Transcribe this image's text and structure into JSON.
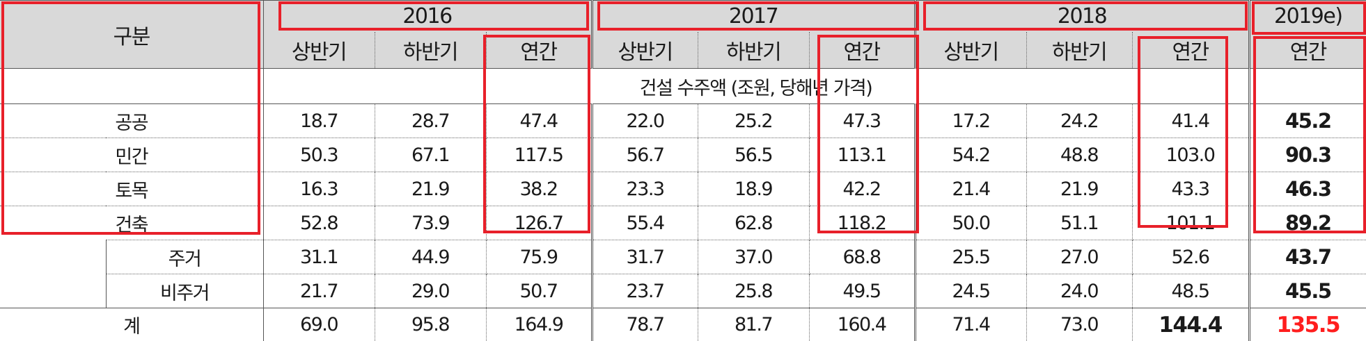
{
  "header": {
    "gubun": "구분",
    "years": [
      "2016",
      "2017",
      "2018",
      "2019e)"
    ],
    "sub": [
      "상반기",
      "하반기",
      "연간"
    ],
    "sub2019": "연간"
  },
  "note": "건설 수주액 (조원, 당해년 가격)",
  "rows": [
    {
      "label": "공공",
      "v": [
        "18.7",
        "28.7",
        "47.4",
        "22.0",
        "25.2",
        "47.3",
        "17.2",
        "24.2",
        "41.4",
        "45.2"
      ]
    },
    {
      "label": "민간",
      "v": [
        "50.3",
        "67.1",
        "117.5",
        "56.7",
        "56.5",
        "113.1",
        "54.2",
        "48.8",
        "103.0",
        "90.3"
      ]
    },
    {
      "label": "토목",
      "v": [
        "16.3",
        "21.9",
        "38.2",
        "23.3",
        "18.9",
        "42.2",
        "21.4",
        "21.9",
        "43.3",
        "46.3"
      ]
    },
    {
      "label": "건축",
      "v": [
        "52.8",
        "73.9",
        "126.7",
        "55.4",
        "62.8",
        "118.2",
        "50.0",
        "51.1",
        "101.1",
        "89.2"
      ]
    },
    {
      "label": "주거",
      "v": [
        "31.1",
        "44.9",
        "75.9",
        "31.7",
        "37.0",
        "68.8",
        "25.5",
        "27.0",
        "52.6",
        "43.7"
      ]
    },
    {
      "label": "비주거",
      "v": [
        "21.7",
        "29.0",
        "50.7",
        "23.7",
        "25.8",
        "49.5",
        "24.5",
        "24.0",
        "48.5",
        "45.5"
      ]
    }
  ],
  "total": {
    "label": "계",
    "v": [
      "69.0",
      "95.8",
      "164.9",
      "78.7",
      "81.7",
      "160.4",
      "71.4",
      "73.0",
      "144.4",
      "135.5"
    ]
  },
  "colors": {
    "header_bg": "#d9d9d9",
    "highlight_box": "#e8202a",
    "total_2019": "#ff1e1e"
  }
}
